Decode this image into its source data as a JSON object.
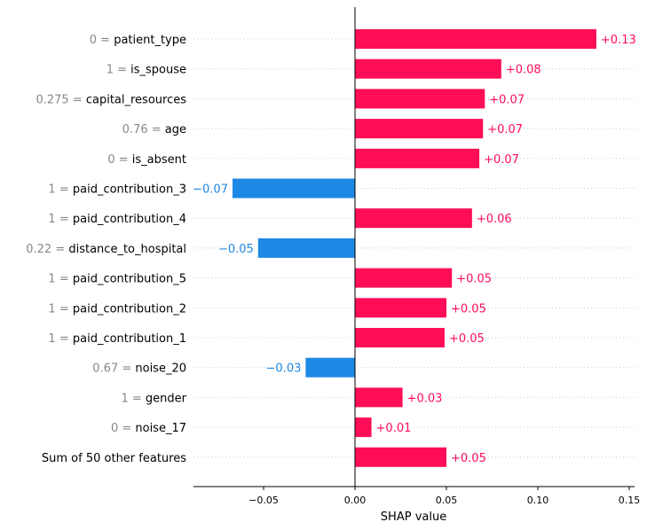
{
  "chart_data": {
    "type": "bar",
    "orientation": "horizontal",
    "xlabel": "SHAP value",
    "xlim": [
      -0.088,
      0.152
    ],
    "grid": "dotted horizontal row guides",
    "colors": {
      "positive": "#ff0d57",
      "negative": "#1e88e5",
      "gray": "#888888"
    },
    "x_ticks": [
      {
        "value": -0.05,
        "label": "−0.05"
      },
      {
        "value": 0.0,
        "label": "0.00"
      },
      {
        "value": 0.05,
        "label": "0.05"
      },
      {
        "value": 0.1,
        "label": "0.10"
      },
      {
        "value": 0.15,
        "label": "0.15"
      }
    ],
    "features": [
      {
        "value_text": "0 = ",
        "name": "patient_type",
        "shap": 0.132,
        "label": "+0.13"
      },
      {
        "value_text": "1 = ",
        "name": "is_spouse",
        "shap": 0.08,
        "label": "+0.08"
      },
      {
        "value_text": "0.275 = ",
        "name": "capital_resources",
        "shap": 0.071,
        "label": "+0.07"
      },
      {
        "value_text": "0.76 = ",
        "name": "age",
        "shap": 0.07,
        "label": "+0.07"
      },
      {
        "value_text": "0 = ",
        "name": "is_absent",
        "shap": 0.068,
        "label": "+0.07"
      },
      {
        "value_text": "1 = ",
        "name": "paid_contribution_3",
        "shap": -0.067,
        "label": "−0.07"
      },
      {
        "value_text": "1 = ",
        "name": "paid_contribution_4",
        "shap": 0.064,
        "label": "+0.06"
      },
      {
        "value_text": "0.22 = ",
        "name": "distance_to_hospital",
        "shap": -0.053,
        "label": "−0.05"
      },
      {
        "value_text": "1 = ",
        "name": "paid_contribution_5",
        "shap": 0.053,
        "label": "+0.05"
      },
      {
        "value_text": "1 = ",
        "name": "paid_contribution_2",
        "shap": 0.05,
        "label": "+0.05"
      },
      {
        "value_text": "1 = ",
        "name": "paid_contribution_1",
        "shap": 0.049,
        "label": "+0.05"
      },
      {
        "value_text": "0.67 = ",
        "name": "noise_20",
        "shap": -0.027,
        "label": "−0.03"
      },
      {
        "value_text": "1 = ",
        "name": "gender",
        "shap": 0.026,
        "label": "+0.03"
      },
      {
        "value_text": "0 = ",
        "name": "noise_17",
        "shap": 0.009,
        "label": "+0.01"
      },
      {
        "value_text": "",
        "name": "Sum of 50 other features",
        "shap": 0.05,
        "label": "+0.05"
      }
    ]
  }
}
